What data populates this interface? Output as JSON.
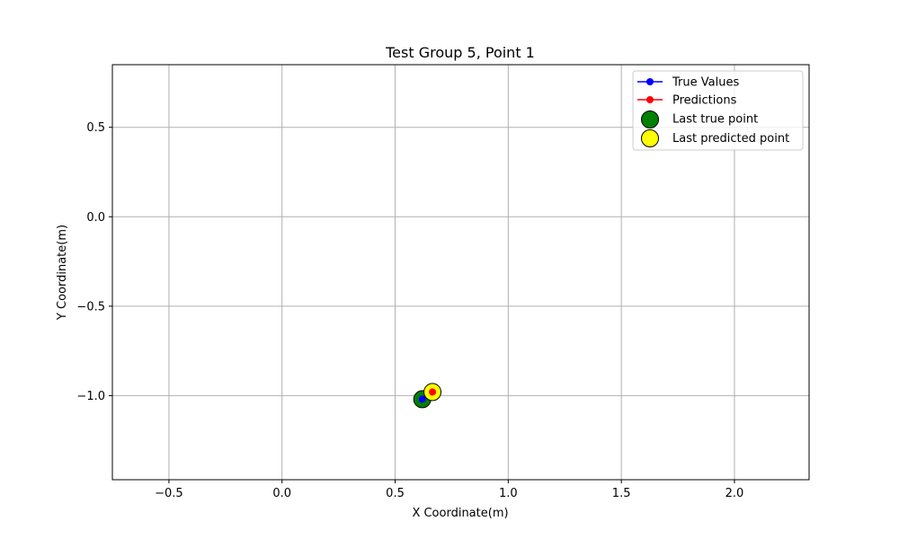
{
  "chart_data": {
    "type": "scatter",
    "title": "Test Group 5, Point 1",
    "xlabel": "X Coordinate(m)",
    "ylabel": "Y Coordinate(m)",
    "xlim": [
      -0.75,
      2.33
    ],
    "ylim": [
      -1.47,
      0.85
    ],
    "xticks": [
      -0.5,
      0.0,
      0.5,
      1.0,
      1.5,
      2.0
    ],
    "xtick_labels": [
      "−0.5",
      "0.0",
      "0.5",
      "1.0",
      "1.5",
      "2.0"
    ],
    "yticks": [
      0.5,
      0.0,
      -0.5,
      -1.0
    ],
    "ytick_labels": [
      "0.5",
      "0.0",
      "−0.5",
      "−1.0"
    ],
    "grid": true,
    "legend_position": "top-right",
    "series": [
      {
        "name": "True Values",
        "marker": "dot-line",
        "color": "#0000ff",
        "x": [
          0.62
        ],
        "y": [
          -1.02
        ]
      },
      {
        "name": "Predictions",
        "marker": "dot-line",
        "color": "#ff0000",
        "x": [
          0.665
        ],
        "y": [
          -0.98
        ]
      },
      {
        "name": "Last true point",
        "marker": "big-circle",
        "color": "#008000",
        "x": [
          0.62
        ],
        "y": [
          -1.02
        ]
      },
      {
        "name": "Last predicted point",
        "marker": "big-circle",
        "color": "#ffff00",
        "x": [
          0.665
        ],
        "y": [
          -0.98
        ]
      }
    ]
  }
}
